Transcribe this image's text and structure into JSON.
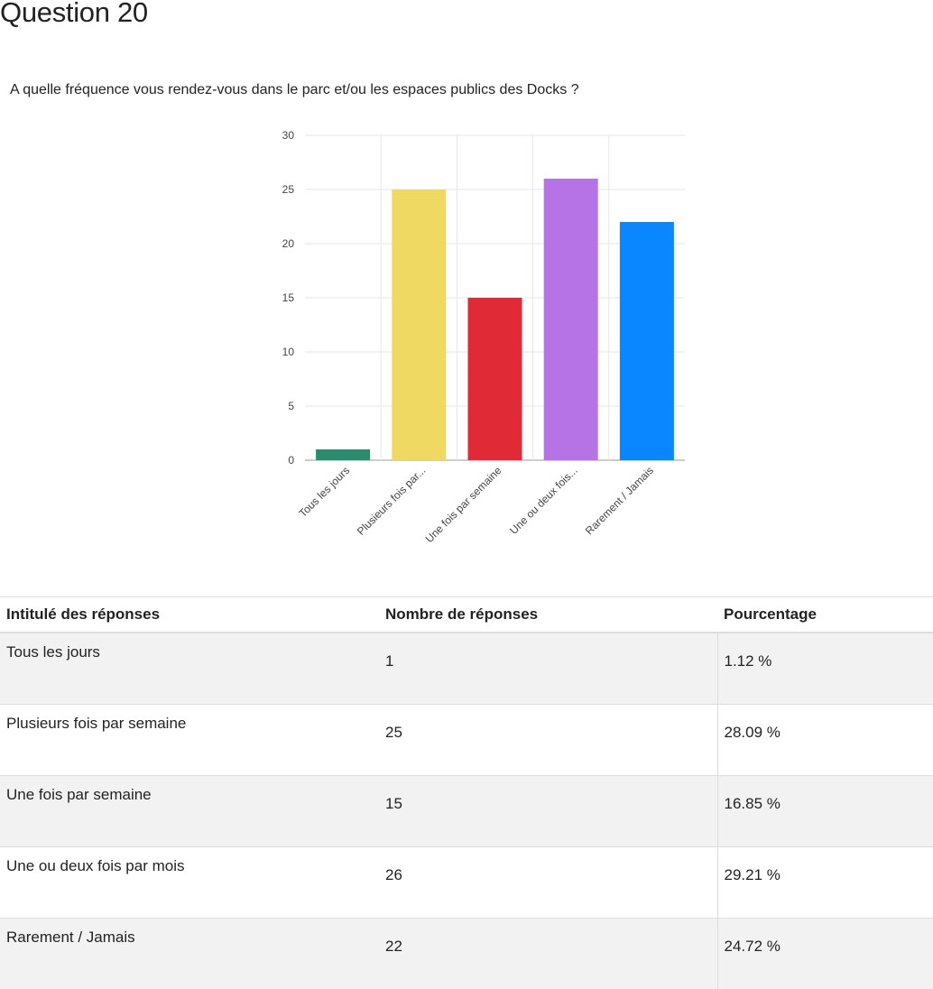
{
  "page": {
    "title": "Question 20",
    "question": "A quelle fréquence vous rendez-vous dans le parc et/ou les espaces publics des Docks ?"
  },
  "chart_data": {
    "type": "bar",
    "categories": [
      "Tous les jours",
      "Plusieurs fois par...",
      "Une fois par semaine",
      "Une ou deux fois...",
      "Rarement  / Jamais"
    ],
    "values": [
      1,
      25,
      15,
      26,
      22
    ],
    "colors": [
      "#2a8c6e",
      "#efd962",
      "#e02a35",
      "#b573e6",
      "#0a87fe"
    ],
    "title": "",
    "xlabel": "",
    "ylabel": "",
    "ylim": [
      0,
      30
    ],
    "yticks": [
      0,
      5,
      10,
      15,
      20,
      25,
      30
    ],
    "grid": true
  },
  "table": {
    "headers": [
      "Intitulé des réponses",
      "Nombre de réponses",
      "Pourcentage"
    ],
    "rows": [
      {
        "label": "Tous les jours",
        "count": "1",
        "percent": "1.12 %"
      },
      {
        "label": "Plusieurs fois par semaine",
        "count": "25",
        "percent": "28.09 %"
      },
      {
        "label": "Une fois par semaine",
        "count": "15",
        "percent": "16.85 %"
      },
      {
        "label": "Une ou deux fois par mois",
        "count": "26",
        "percent": "29.21 %"
      },
      {
        "label": "Rarement  / Jamais",
        "count": "22",
        "percent": "24.72 %"
      }
    ]
  }
}
